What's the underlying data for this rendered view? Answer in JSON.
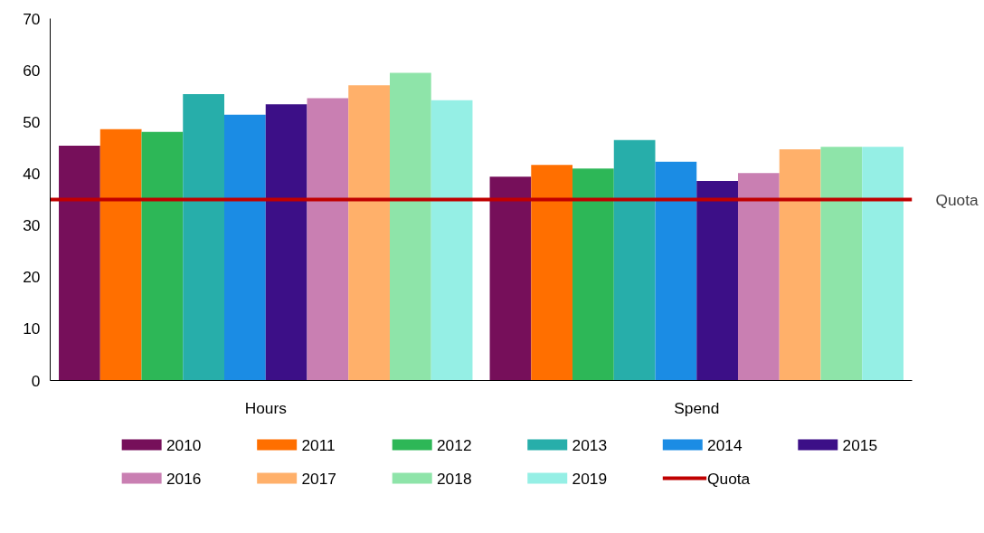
{
  "chart_data": {
    "type": "bar",
    "categories": [
      "Hours",
      "Spend"
    ],
    "series": [
      {
        "name": "2010",
        "color": "#760f5a",
        "values": [
          45.4,
          39.4
        ]
      },
      {
        "name": "2011",
        "color": "#ff6f00",
        "values": [
          48.6,
          41.7
        ]
      },
      {
        "name": "2012",
        "color": "#2db757",
        "values": [
          48.1,
          41.0
        ]
      },
      {
        "name": "2013",
        "color": "#27aeaa",
        "values": [
          55.4,
          46.5
        ]
      },
      {
        "name": "2014",
        "color": "#1b8ce4",
        "values": [
          51.4,
          42.3
        ]
      },
      {
        "name": "2015",
        "color": "#3c0f87",
        "values": [
          53.4,
          38.6
        ]
      },
      {
        "name": "2016",
        "color": "#c97fb2",
        "values": [
          54.6,
          40.1
        ]
      },
      {
        "name": "2017",
        "color": "#ffb06a",
        "values": [
          57.1,
          44.7
        ]
      },
      {
        "name": "2018",
        "color": "#8ee4a9",
        "values": [
          59.5,
          45.2
        ]
      },
      {
        "name": "2019",
        "color": "#95efe5",
        "values": [
          54.2,
          45.2
        ]
      }
    ],
    "ref_lines": [
      {
        "axis": "y",
        "value": 35,
        "label": "Quota",
        "color": "#c00000",
        "line_style": "solid"
      }
    ],
    "ylim": [
      0,
      70
    ],
    "yticks": [
      0,
      10,
      20,
      30,
      40,
      50,
      60,
      70
    ],
    "grid": false,
    "legend": "bottom"
  }
}
